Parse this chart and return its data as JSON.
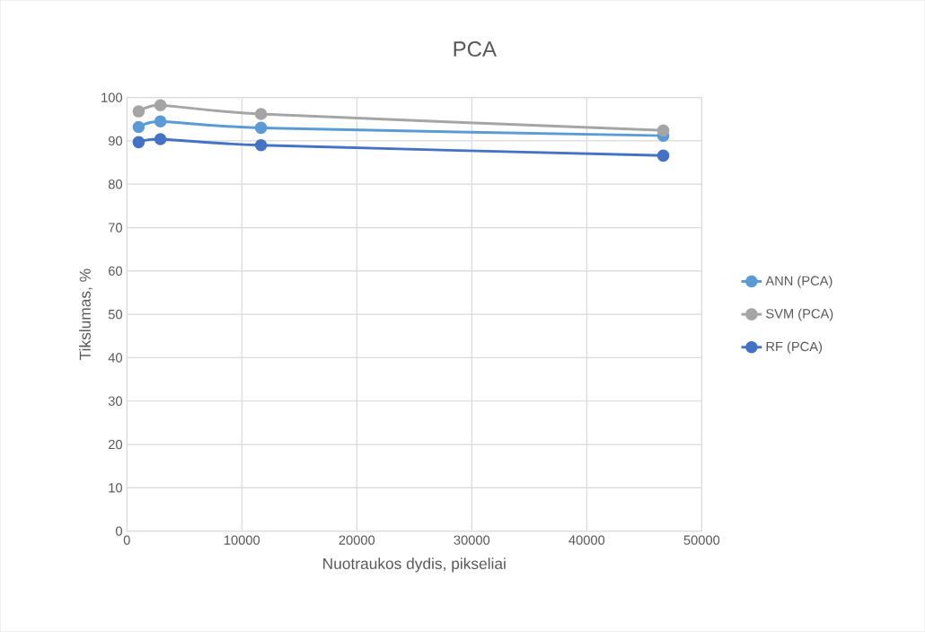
{
  "chart_data": {
    "type": "line",
    "title": "PCA",
    "xlabel": "Nuotraukos dydis, pikseliai",
    "ylabel": "Tikslumas, %",
    "x": [
      1024,
      2916,
      11664,
      46656
    ],
    "series": [
      {
        "name": "ANN (PCA)",
        "color": "#5b9bd5",
        "values": [
          93.2,
          94.5,
          93.0,
          91.2
        ]
      },
      {
        "name": "SVM (PCA)",
        "color": "#a5a5a5",
        "values": [
          96.8,
          98.2,
          96.2,
          92.4
        ]
      },
      {
        "name": "RF (PCA)",
        "color": "#4472c4",
        "values": [
          89.7,
          90.4,
          89.0,
          86.6
        ]
      }
    ],
    "xlim": [
      0,
      50000
    ],
    "ylim": [
      0,
      100
    ],
    "xticks": [
      0,
      10000,
      20000,
      30000,
      40000,
      50000
    ],
    "yticks": [
      0,
      10,
      20,
      30,
      40,
      50,
      60,
      70,
      80,
      90,
      100
    ],
    "grid": true,
    "legend": "right",
    "marker": "circle",
    "line_style": "solid"
  }
}
